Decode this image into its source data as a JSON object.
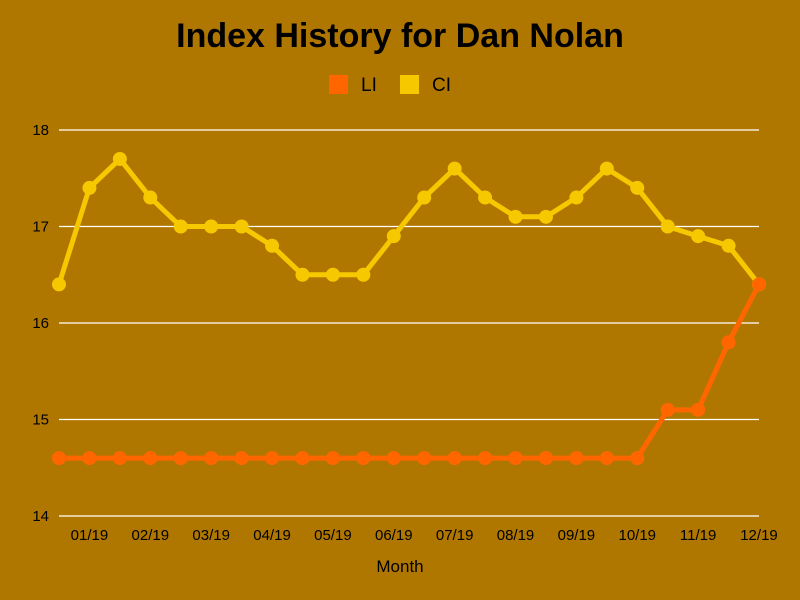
{
  "chart_data": {
    "type": "line",
    "title": "Index History for Dan Nolan",
    "xlabel": "Month",
    "ylabel": "",
    "ylim": [
      14,
      18
    ],
    "yticks": [
      14,
      15,
      16,
      17,
      18
    ],
    "grid": true,
    "legend_position": "top-center",
    "x_tick_labels": [
      "01/19",
      "02/19",
      "03/19",
      "04/19",
      "05/19",
      "06/19",
      "07/19",
      "08/19",
      "09/19",
      "10/19",
      "11/19",
      "12/19"
    ],
    "series": [
      {
        "name": "LI",
        "color": "#ff6600",
        "values": [
          14.6,
          14.6,
          14.6,
          14.6,
          14.6,
          14.6,
          14.6,
          14.6,
          14.6,
          14.6,
          14.6,
          14.6,
          14.6,
          14.6,
          14.6,
          14.6,
          14.6,
          14.6,
          14.6,
          14.6,
          15.1,
          15.1,
          15.8,
          16.4
        ]
      },
      {
        "name": "CI",
        "color": "#f5c800",
        "values": [
          16.4,
          17.4,
          17.7,
          17.3,
          17.0,
          17.0,
          17.0,
          16.8,
          16.5,
          16.5,
          16.5,
          16.9,
          17.3,
          17.6,
          17.3,
          17.1,
          17.1,
          17.3,
          17.6,
          17.4,
          17.0,
          16.9,
          16.8,
          16.4
        ]
      }
    ]
  }
}
